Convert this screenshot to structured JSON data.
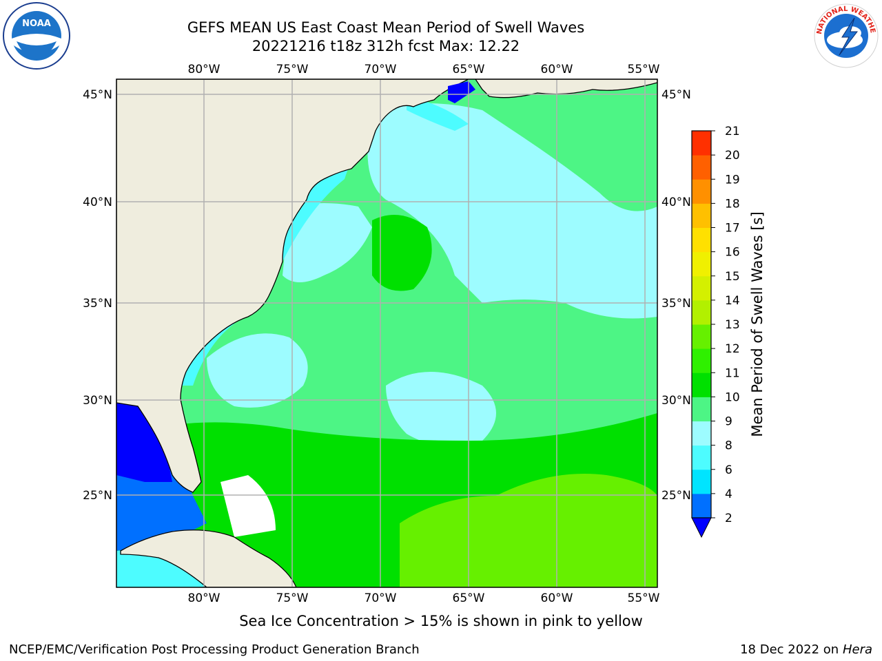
{
  "header": {
    "title_line1": "GEFS MEAN US East Coast Mean Period of Swell Waves",
    "title_line2": "20221216 t18z 312h fcst   Max: 12.22"
  },
  "map": {
    "lon_labels": [
      "80°W",
      "75°W",
      "70°W",
      "65°W",
      "60°W",
      "55°W"
    ],
    "lat_labels": [
      "45°N",
      "40°N",
      "35°N",
      "30°N",
      "25°N"
    ],
    "land_color": "#efedde",
    "grid_color": "#b0b0b0"
  },
  "colorbar": {
    "label": "Mean Period of Swell Waves [s]",
    "ticks": [
      "2",
      "4",
      "6",
      "8",
      "9",
      "10",
      "11",
      "12",
      "13",
      "14",
      "15",
      "16",
      "17",
      "18",
      "19",
      "20",
      "21"
    ],
    "colors": [
      "#0070ff",
      "#00e4ff",
      "#4dfcff",
      "#9dfcff",
      "#4df585",
      "#00e000",
      "#2ff000",
      "#66f000",
      "#b2f000",
      "#d4f000",
      "#f0f000",
      "#ffe000",
      "#ffc000",
      "#ff9000",
      "#ff6000",
      "#ff3000"
    ],
    "under_color": "#0000ff"
  },
  "logos": {
    "noaa_text": "NOAA",
    "nws_text": "NATIONAL WEATHER SERVICE"
  },
  "caption": "Sea Ice Concentration > 15% is shown in pink to yellow",
  "footer": {
    "left": "NCEP/EMC/Verification Post Processing Product Generation Branch",
    "date": "18 Dec 2022 on",
    "machine": "Hera"
  }
}
